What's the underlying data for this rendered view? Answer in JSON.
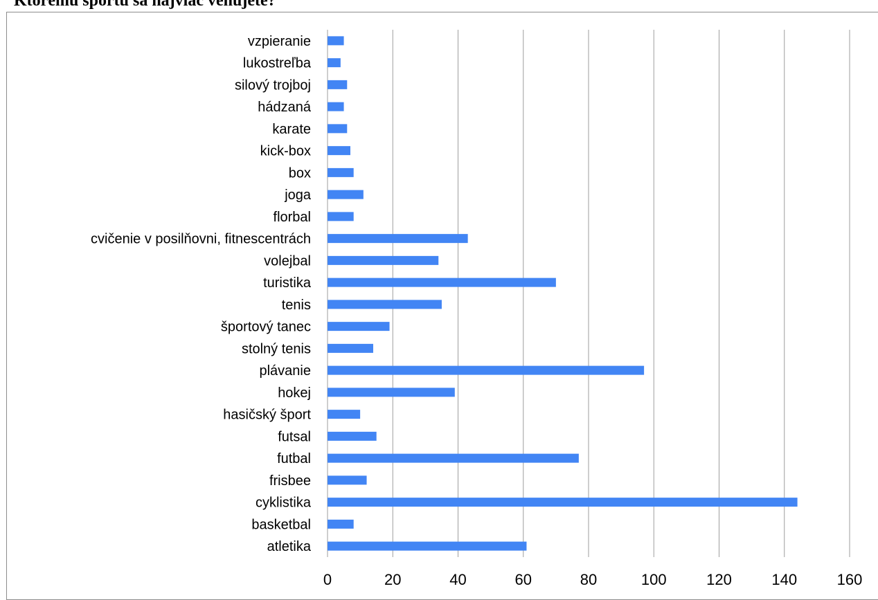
{
  "chart_data": {
    "type": "bar",
    "orientation": "horizontal",
    "title": "Ktorému športu sa najviac venujete?",
    "xlabel": "",
    "ylabel": "",
    "categories": [
      "atletika",
      "basketbal",
      "cyklistika",
      "frisbee",
      "futbal",
      "futsal",
      "hasičský šport",
      "hokej",
      "plávanie",
      "stolný tenis",
      "športový tanec",
      "tenis",
      "turistika",
      "volejbal",
      "cvičenie v posilňovni, fitnescentrách",
      "florbal",
      "joga",
      "box",
      "kick-box",
      "karate",
      "hádzaná",
      "silový trojboj",
      "lukostreľba",
      "vzpieranie"
    ],
    "values": [
      61,
      8,
      144,
      12,
      77,
      15,
      10,
      39,
      97,
      14,
      19,
      35,
      70,
      34,
      43,
      8,
      11,
      8,
      7,
      6,
      5,
      6,
      4,
      5
    ],
    "xlim": [
      0,
      160
    ],
    "xticks": [
      0,
      20,
      40,
      60,
      80,
      100,
      120,
      140,
      160
    ],
    "grid": "vertical",
    "legend": "none",
    "bar_color": "#4285f4",
    "grid_color": "#9e9e9e"
  }
}
